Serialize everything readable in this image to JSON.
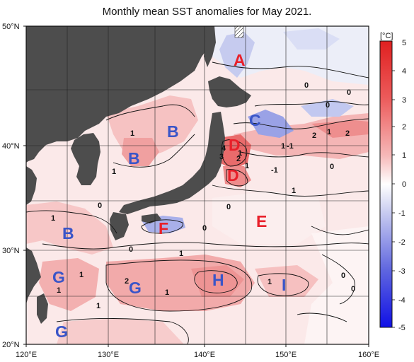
{
  "title": "Monthly mean SST anomalies for May 2021.",
  "lat_labels": [
    "50°N",
    "40°N",
    "30°N",
    "20°N"
  ],
  "lon_labels": [
    "120°E",
    "130°E",
    "140°E",
    "150°E",
    "160°E"
  ],
  "colorbar": {
    "unit": "[°C]",
    "ticks": [
      "5",
      "4",
      "3",
      "2",
      "1",
      "0",
      "-1",
      "-2",
      "-3",
      "-4",
      "-5"
    ],
    "warm_color": "#e8202a",
    "cold_color": "#1a1ae0"
  },
  "regions": [
    {
      "letter": "A",
      "color": "#e8202a"
    },
    {
      "letter": "B",
      "color": "#3a55c8"
    },
    {
      "letter": "B",
      "color": "#3a55c8"
    },
    {
      "letter": "B",
      "color": "#3a55c8"
    },
    {
      "letter": "C",
      "color": "#3a55c8"
    },
    {
      "letter": "D",
      "color": "#e8202a"
    },
    {
      "letter": "D",
      "color": "#e8202a"
    },
    {
      "letter": "E",
      "color": "#e8202a"
    },
    {
      "letter": "F",
      "color": "#e8202a"
    },
    {
      "letter": "G",
      "color": "#3a55c8"
    },
    {
      "letter": "G",
      "color": "#3a55c8"
    },
    {
      "letter": "G",
      "color": "#3a55c8"
    },
    {
      "letter": "H",
      "color": "#3a55c8"
    },
    {
      "letter": "I",
      "color": "#3a55c8"
    }
  ],
  "contour_labels": [
    "0",
    "0",
    "0",
    "2",
    "1",
    "2",
    "1",
    "-1",
    "4",
    "3",
    "2",
    "1",
    "-1",
    "0",
    "1",
    "1",
    "0",
    "0",
    "0",
    "0",
    "1",
    "1",
    "1",
    "1",
    "1",
    "2",
    "1",
    "1",
    "0",
    "1",
    "0",
    "1"
  ]
}
